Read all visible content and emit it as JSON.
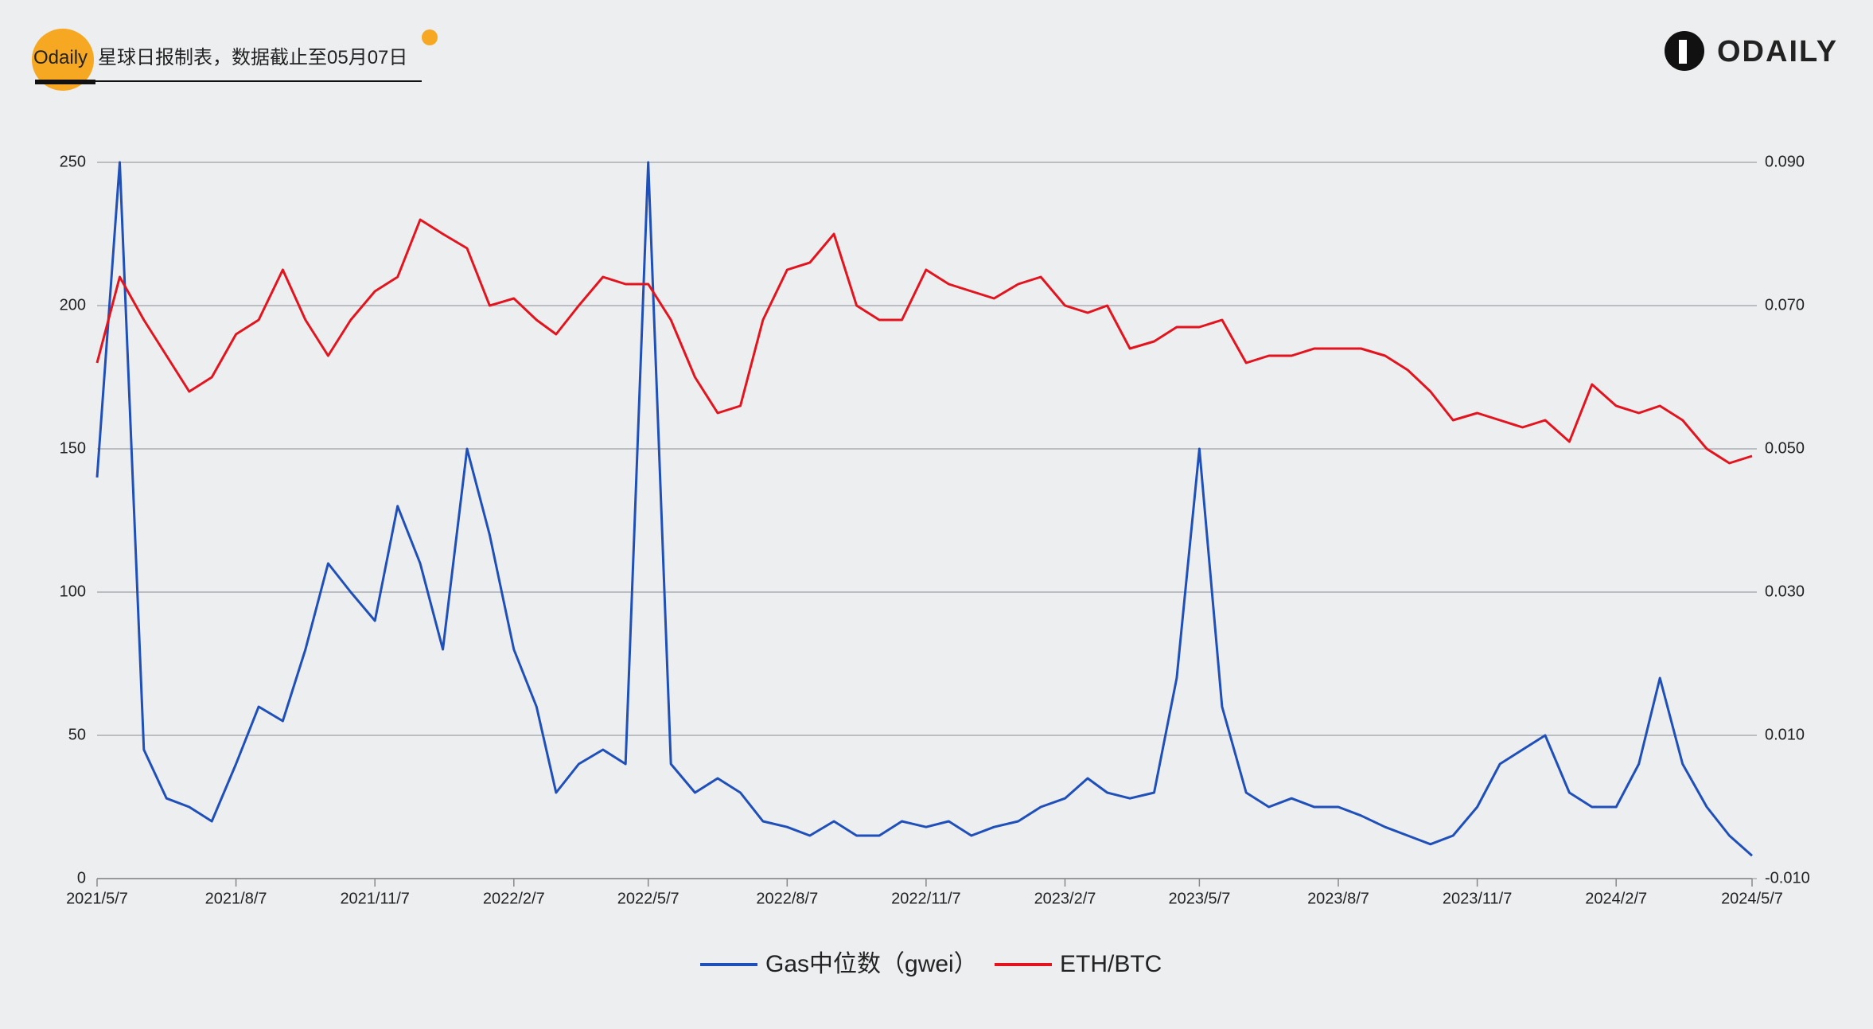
{
  "header": {
    "source_brand": "Odaily",
    "source_text": "星球日报制表，数据截止至05月07日",
    "brand": "ODAILY"
  },
  "chart_data": {
    "type": "line",
    "x": [
      "2021/5/7",
      "2021/5/22",
      "2021/6/7",
      "2021/6/22",
      "2021/7/7",
      "2021/7/22",
      "2021/8/7",
      "2021/8/22",
      "2021/9/7",
      "2021/9/22",
      "2021/10/7",
      "2021/10/22",
      "2021/11/7",
      "2021/11/22",
      "2021/12/7",
      "2021/12/22",
      "2022/1/7",
      "2022/1/22",
      "2022/2/7",
      "2022/2/22",
      "2022/3/7",
      "2022/3/22",
      "2022/4/7",
      "2022/4/22",
      "2022/5/7",
      "2022/5/22",
      "2022/6/7",
      "2022/6/22",
      "2022/7/7",
      "2022/7/22",
      "2022/8/7",
      "2022/8/22",
      "2022/9/7",
      "2022/9/22",
      "2022/10/7",
      "2022/10/22",
      "2022/11/7",
      "2022/11/22",
      "2022/12/7",
      "2022/12/22",
      "2023/1/7",
      "2023/1/22",
      "2023/2/7",
      "2023/2/22",
      "2023/3/7",
      "2023/3/22",
      "2023/4/7",
      "2023/4/22",
      "2023/5/7",
      "2023/5/22",
      "2023/6/7",
      "2023/6/22",
      "2023/7/7",
      "2023/7/22",
      "2023/8/7",
      "2023/8/22",
      "2023/9/7",
      "2023/9/22",
      "2023/10/7",
      "2023/10/22",
      "2023/11/7",
      "2023/11/22",
      "2023/12/7",
      "2023/12/22",
      "2024/1/7",
      "2024/1/22",
      "2024/2/7",
      "2024/2/22",
      "2024/3/7",
      "2024/3/22",
      "2024/4/7",
      "2024/4/22",
      "2024/5/7"
    ],
    "series": [
      {
        "name": "Gas中位数（gwei）",
        "color": "#1f4fb8",
        "values": [
          140,
          250,
          45,
          28,
          25,
          20,
          40,
          60,
          55,
          80,
          110,
          100,
          90,
          130,
          110,
          80,
          150,
          120,
          80,
          60,
          30,
          40,
          45,
          40,
          250,
          40,
          30,
          35,
          30,
          20,
          18,
          15,
          20,
          15,
          15,
          20,
          18,
          20,
          15,
          18,
          20,
          25,
          28,
          35,
          30,
          28,
          30,
          70,
          150,
          60,
          30,
          25,
          28,
          25,
          25,
          22,
          18,
          15,
          12,
          15,
          25,
          40,
          45,
          50,
          30,
          25,
          25,
          40,
          70,
          40,
          25,
          15,
          8
        ]
      },
      {
        "name": "ETH/BTC",
        "color": "#e3141e",
        "axis": "y2",
        "values": [
          0.062,
          0.074,
          0.068,
          0.063,
          0.058,
          0.06,
          0.066,
          0.068,
          0.075,
          0.068,
          0.063,
          0.068,
          0.072,
          0.074,
          0.082,
          0.08,
          0.078,
          0.07,
          0.071,
          0.068,
          0.066,
          0.07,
          0.074,
          0.073,
          0.073,
          0.068,
          0.06,
          0.055,
          0.056,
          0.068,
          0.075,
          0.076,
          0.08,
          0.07,
          0.068,
          0.068,
          0.075,
          0.073,
          0.072,
          0.071,
          0.073,
          0.074,
          0.07,
          0.069,
          0.07,
          0.064,
          0.065,
          0.067,
          0.067,
          0.068,
          0.062,
          0.063,
          0.063,
          0.064,
          0.064,
          0.064,
          0.063,
          0.061,
          0.058,
          0.054,
          0.055,
          0.054,
          0.053,
          0.054,
          0.051,
          0.059,
          0.056,
          0.055,
          0.056,
          0.054,
          0.05,
          0.048,
          0.049
        ]
      }
    ],
    "xticks": [
      "2021/5/7",
      "2021/8/7",
      "2021/11/7",
      "2022/2/7",
      "2022/5/7",
      "2022/8/7",
      "2022/11/7",
      "2023/2/7",
      "2023/5/7",
      "2023/8/7",
      "2023/11/7",
      "2024/2/7",
      "2024/5/7"
    ],
    "ylim": [
      0,
      250
    ],
    "yticks": [
      0,
      50,
      100,
      150,
      200,
      250
    ],
    "y2lim": [
      -0.01,
      0.09
    ],
    "y2ticks": [
      {
        "value": -0.01,
        "label": "-0.010"
      },
      {
        "value": 0.01,
        "label": "0.010"
      },
      {
        "value": 0.03,
        "label": "0.030"
      },
      {
        "value": 0.05,
        "label": "0.050"
      },
      {
        "value": 0.07,
        "label": "0.070"
      },
      {
        "value": 0.09,
        "label": "0.090"
      }
    ],
    "grid": true
  }
}
